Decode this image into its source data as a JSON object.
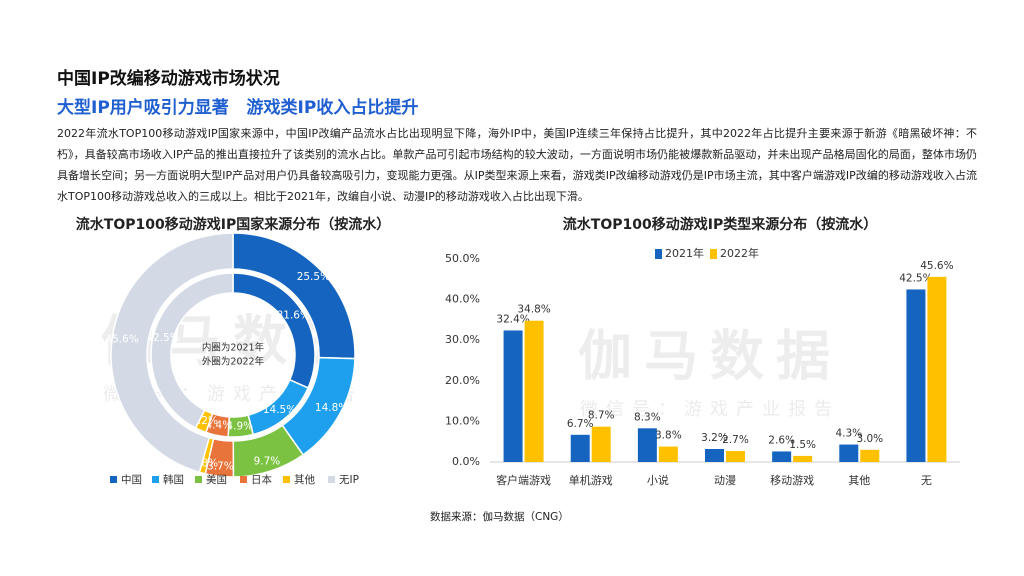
{
  "title": "中国IP改编移动游戏市场状况",
  "subtitle": "大型IP用户吸引力显著   游戏类IP收入占比提升",
  "body": "2022年流水TOP100移动游戏IP国家来源中，中国IP改编产品流水占比出现明显下降，海外IP中，美国IP连续三年保持占比提升，其中2022年占比提升主要来源于新游《暗黑破坏神：不朽》，具备较高市场收入IP产品的推出直接拉升了该类别的流水占比。单款产品可引起市场结构的较大波动，一方面说明市场仍能被爆款新品驱动，并未出现产品格局固化的局面，整体市场仍具备增长空间；另一方面说明大型IP产品对用户仍具备较高吸引力，变现能力更强。从IP类型来源上来看，游戏类IP改编移动游戏仍是IP市场主流，其中客户端游戏IP改编的移动游戏收入占流水TOP100移动游戏总收入的三成以上。相比于2021年，改编自小说、动漫IP的移动游戏收入占比出现下滑。",
  "source": "数据来源：伽马数据（CNG）",
  "watermark": {
    "brand": "伽马数据",
    "sub": "微信号：游戏产业报告"
  },
  "chart_data": [
    {
      "type": "pie",
      "title": "流水TOP100移动游戏IP国家来源分布（按流水）",
      "categories": [
        "中国",
        "韩国",
        "美国",
        "日本",
        "其他",
        "无IP"
      ],
      "colors": [
        "#1565c0",
        "#1ea0ef",
        "#7cc242",
        "#e8743b",
        "#ffc000",
        "#d3dae5"
      ],
      "annotations": [
        "内圈为2021年",
        "外圈为2022年"
      ],
      "series": [
        {
          "values": [
            31.6,
            14.5,
            4.9,
            4.4,
            2.2,
            42.5
          ],
          "value_labels": [
            "31.6%",
            "14.5%",
            "4.9%",
            "4.4%",
            "2.2%",
            "42.5%"
          ]
        },
        {
          "values": [
            25.5,
            14.8,
            9.7,
            3.7,
            0.8,
            45.6
          ],
          "value_labels": [
            "25.5%",
            "14.8%",
            "9.7%",
            "3.7%",
            "0.8%",
            "45.6%"
          ]
        }
      ]
    },
    {
      "type": "bar",
      "title": "流水TOP100移动游戏IP类型来源分布（按流水）",
      "categories": [
        "客户端游戏",
        "单机游戏",
        "小说",
        "动漫",
        "移动游戏",
        "其他",
        "无"
      ],
      "series": [
        {
          "name": "2021年",
          "color": "#1565c0",
          "values": [
            32.4,
            6.7,
            8.3,
            3.2,
            2.6,
            4.3,
            42.5
          ],
          "value_labels": [
            "32.4%",
            "6.7%",
            "8.3%",
            "3.2%",
            "2.6%",
            "4.3%",
            "42.5%"
          ]
        },
        {
          "name": "2022年",
          "color": "#ffc000",
          "values": [
            34.8,
            8.7,
            3.8,
            2.7,
            1.5,
            3.0,
            45.6
          ],
          "value_labels": [
            "34.8%",
            "8.7%",
            "3.8%",
            "2.7%",
            "1.5%",
            "3.0%",
            "45.6%"
          ]
        }
      ],
      "ylim": [
        0,
        50
      ],
      "yticks": [
        {
          "value": 0,
          "label": "0.0%"
        },
        {
          "value": 10,
          "label": "10.0%"
        },
        {
          "value": 20,
          "label": "20.0%"
        },
        {
          "value": 30,
          "label": "30.0%"
        },
        {
          "value": 40,
          "label": "40.0%"
        },
        {
          "value": 50,
          "label": "50.0%"
        }
      ]
    }
  ]
}
